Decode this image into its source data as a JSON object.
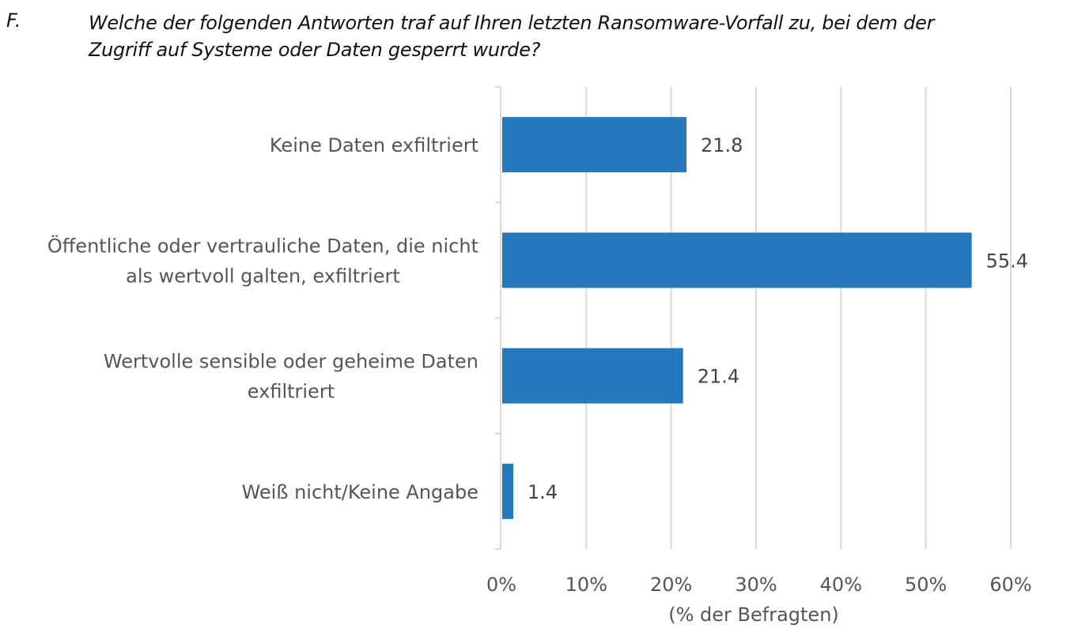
{
  "question": {
    "number": "F.",
    "lines": [
      "Welche der folgenden Antworten traf auf Ihren letzten Ransomware-Vorfall zu, bei dem der",
      "Zugriff auf Systeme oder Daten gesperrt wurde?"
    ]
  },
  "chart_data": {
    "type": "bar",
    "orientation": "horizontal",
    "title": "Welche der folgenden Antworten traf auf Ihren letzten Ransomware-Vorfall zu, bei dem der Zugriff auf Systeme oder Daten gesperrt wurde?",
    "categories": [
      [
        "Keine Daten exfiltriert"
      ],
      [
        "Öffentliche oder vertrauliche Daten, die nicht",
        "als wertvoll galten, exfiltriert"
      ],
      [
        "Wertvolle sensible oder geheime Daten",
        "exfiltriert"
      ],
      [
        "Weiß nicht/Keine Angabe"
      ]
    ],
    "values": [
      21.8,
      55.4,
      21.4,
      1.4
    ],
    "value_labels": [
      "21.8",
      "55.4",
      "21.4",
      "1.4"
    ],
    "xlabel": "(% der Befragten)",
    "ylabel": "",
    "xlim": [
      0,
      60
    ],
    "xticks": [
      0,
      10,
      20,
      30,
      40,
      50,
      60
    ],
    "xtick_labels": [
      "0%",
      "10%",
      "20%",
      "30%",
      "40%",
      "50%",
      "60%"
    ],
    "grid": "vertical",
    "legend": "none",
    "bar_color": "#2479BD"
  }
}
